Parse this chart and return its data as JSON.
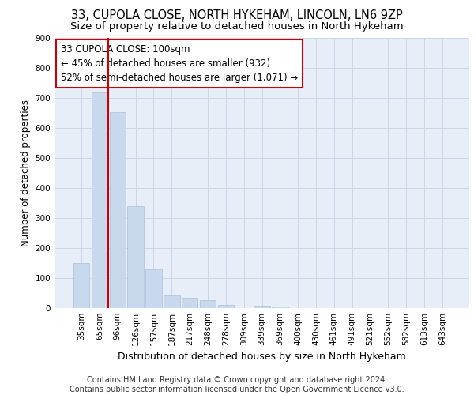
{
  "title_line1": "33, CUPOLA CLOSE, NORTH HYKEHAM, LINCOLN, LN6 9ZP",
  "title_line2": "Size of property relative to detached houses in North Hykeham",
  "xlabel": "Distribution of detached houses by size in North Hykeham",
  "ylabel": "Number of detached properties",
  "categories": [
    "35sqm",
    "65sqm",
    "96sqm",
    "126sqm",
    "157sqm",
    "187sqm",
    "217sqm",
    "248sqm",
    "278sqm",
    "309sqm",
    "339sqm",
    "369sqm",
    "400sqm",
    "430sqm",
    "461sqm",
    "491sqm",
    "521sqm",
    "552sqm",
    "582sqm",
    "613sqm",
    "643sqm"
  ],
  "values": [
    150,
    718,
    652,
    340,
    130,
    42,
    35,
    27,
    10,
    0,
    8,
    5,
    0,
    0,
    0,
    0,
    0,
    0,
    0,
    0,
    0
  ],
  "bar_color": "#c8d9ee",
  "bar_edge_color": "#aac0dc",
  "vline_x": 1.5,
  "vline_color": "#cc0000",
  "annotation_text": "33 CUPOLA CLOSE: 100sqm\n← 45% of detached houses are smaller (932)\n52% of semi-detached houses are larger (1,071) →",
  "annotation_box_color": "#ffffff",
  "annotation_box_edge": "#cc0000",
  "ylim": [
    0,
    900
  ],
  "yticks": [
    0,
    100,
    200,
    300,
    400,
    500,
    600,
    700,
    800,
    900
  ],
  "grid_color": "#cdd6e8",
  "background_color": "#e8eef8",
  "footer": "Contains HM Land Registry data © Crown copyright and database right 2024.\nContains public sector information licensed under the Open Government Licence v3.0.",
  "title_fontsize": 10.5,
  "subtitle_fontsize": 9.5,
  "xlabel_fontsize": 9,
  "ylabel_fontsize": 8.5,
  "tick_fontsize": 7.5,
  "ann_fontsize": 8.5,
  "footer_fontsize": 7
}
